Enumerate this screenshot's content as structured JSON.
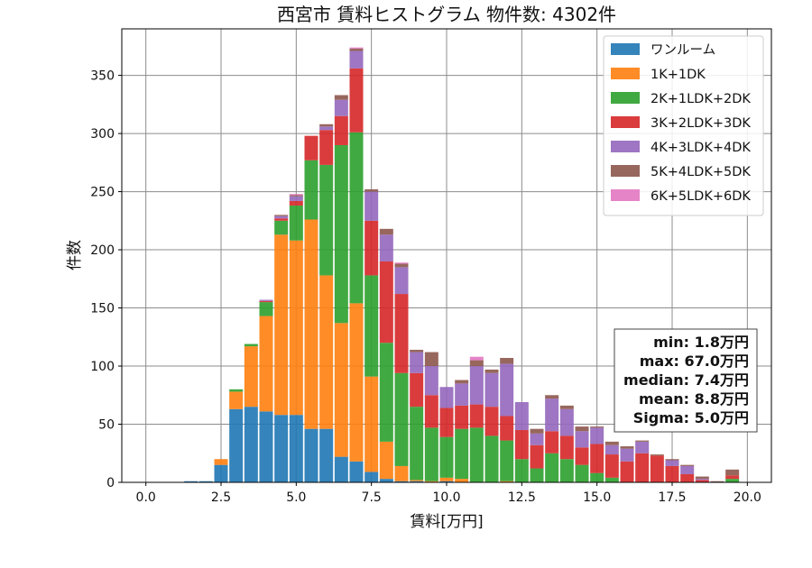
{
  "chart_data": {
    "type": "bar",
    "stacked": true,
    "title": "西宮市 賃料ヒストグラム 物件数: 4302件",
    "xlabel": "賃料[万円]",
    "ylabel": "件数",
    "xlim": [
      -0.8,
      20.8
    ],
    "ylim": [
      0,
      390
    ],
    "grid": true,
    "legend_position": "top-right",
    "xticks": [
      0.0,
      2.5,
      5.0,
      7.5,
      10.0,
      12.5,
      15.0,
      17.5,
      20.0
    ],
    "xtick_labels": [
      "0.0",
      "2.5",
      "5.0",
      "7.5",
      "10.0",
      "12.5",
      "15.0",
      "17.5",
      "20.0"
    ],
    "yticks": [
      0,
      50,
      100,
      150,
      200,
      250,
      300,
      350
    ],
    "ytick_labels": [
      "0",
      "50",
      "100",
      "150",
      "200",
      "250",
      "300",
      "350"
    ],
    "bin_width": 0.5,
    "x": [
      0.0,
      0.5,
      1.0,
      1.5,
      2.0,
      2.5,
      3.0,
      3.5,
      4.0,
      4.5,
      5.0,
      5.5,
      6.0,
      6.5,
      7.0,
      7.5,
      8.0,
      8.5,
      9.0,
      9.5,
      10.0,
      10.5,
      11.0,
      11.5,
      12.0,
      12.5,
      13.0,
      13.5,
      14.0,
      14.5,
      15.0,
      15.5,
      16.0,
      16.5,
      17.0,
      17.5,
      18.0,
      18.5,
      19.0,
      19.5
    ],
    "series": [
      {
        "name": "ワンルーム",
        "color": "#1f77b4",
        "values": [
          0,
          0,
          0,
          1,
          1,
          15,
          63,
          65,
          61,
          58,
          58,
          46,
          46,
          22,
          18,
          9,
          3,
          1,
          1,
          0,
          1,
          0,
          0,
          0,
          0,
          0,
          0,
          0,
          0,
          0,
          0,
          0,
          0,
          0,
          0,
          0,
          0,
          0,
          0,
          0
        ]
      },
      {
        "name": "1K+1DK",
        "color": "#ff7f0e",
        "values": [
          0,
          0,
          0,
          0,
          0,
          5,
          15,
          52,
          82,
          155,
          150,
          180,
          132,
          115,
          136,
          82,
          32,
          13,
          1,
          1,
          3,
          3,
          0,
          0,
          1,
          0,
          0,
          0,
          0,
          0,
          0,
          0,
          0,
          0,
          0,
          0,
          0,
          0,
          0,
          0
        ]
      },
      {
        "name": "2K+1LDK+2DK",
        "color": "#2ca02c",
        "values": [
          0,
          0,
          0,
          0,
          0,
          0,
          2,
          2,
          12,
          12,
          30,
          51,
          95,
          153,
          147,
          87,
          85,
          80,
          63,
          46,
          35,
          43,
          47,
          40,
          35,
          20,
          12,
          25,
          20,
          15,
          8,
          4,
          0,
          0,
          0,
          0,
          0,
          0,
          0,
          3
        ]
      },
      {
        "name": "3K+2LDK+3DK",
        "color": "#d62728",
        "values": [
          0,
          0,
          0,
          0,
          0,
          0,
          0,
          0,
          1,
          2,
          4,
          21,
          30,
          25,
          55,
          47,
          70,
          68,
          29,
          28,
          25,
          20,
          20,
          25,
          21,
          25,
          20,
          19,
          20,
          15,
          25,
          20,
          18,
          25,
          23,
          14,
          7,
          2,
          0,
          3
        ]
      },
      {
        "name": "4K+3LDK+4DK",
        "color": "#9467bd",
        "values": [
          0,
          0,
          0,
          0,
          0,
          0,
          0,
          0,
          1,
          2,
          4,
          0,
          3,
          14,
          15,
          25,
          23,
          23,
          18,
          25,
          18,
          19,
          33,
          29,
          45,
          24,
          10,
          28,
          23,
          14,
          14,
          8,
          11,
          10,
          0,
          5,
          7,
          1,
          0,
          0
        ]
      },
      {
        "name": "5K+4LDK+5DK",
        "color": "#8c564b",
        "values": [
          0,
          0,
          0,
          0,
          0,
          0,
          0,
          0,
          0,
          1,
          1,
          0,
          2,
          4,
          2,
          2,
          5,
          3,
          2,
          12,
          0,
          3,
          5,
          3,
          5,
          0,
          4,
          3,
          3,
          4,
          1,
          3,
          2,
          1,
          1,
          1,
          1,
          2,
          1,
          5
        ]
      },
      {
        "name": "6K+5LDK+6DK",
        "color": "#e377c2",
        "values": [
          0,
          0,
          0,
          0,
          0,
          0,
          0,
          0,
          0,
          0,
          1,
          0,
          0,
          0,
          1,
          0,
          0,
          1,
          0,
          0,
          0,
          0,
          3,
          0,
          0,
          0,
          0,
          0,
          0,
          0,
          0,
          0,
          0,
          0,
          0,
          0,
          0,
          0,
          0,
          0
        ]
      }
    ],
    "stats": [
      "min: 1.8万円",
      "max: 67.0万円",
      "median: 7.4万円",
      "mean: 8.8万円",
      "Sigma: 5.0万円"
    ]
  }
}
